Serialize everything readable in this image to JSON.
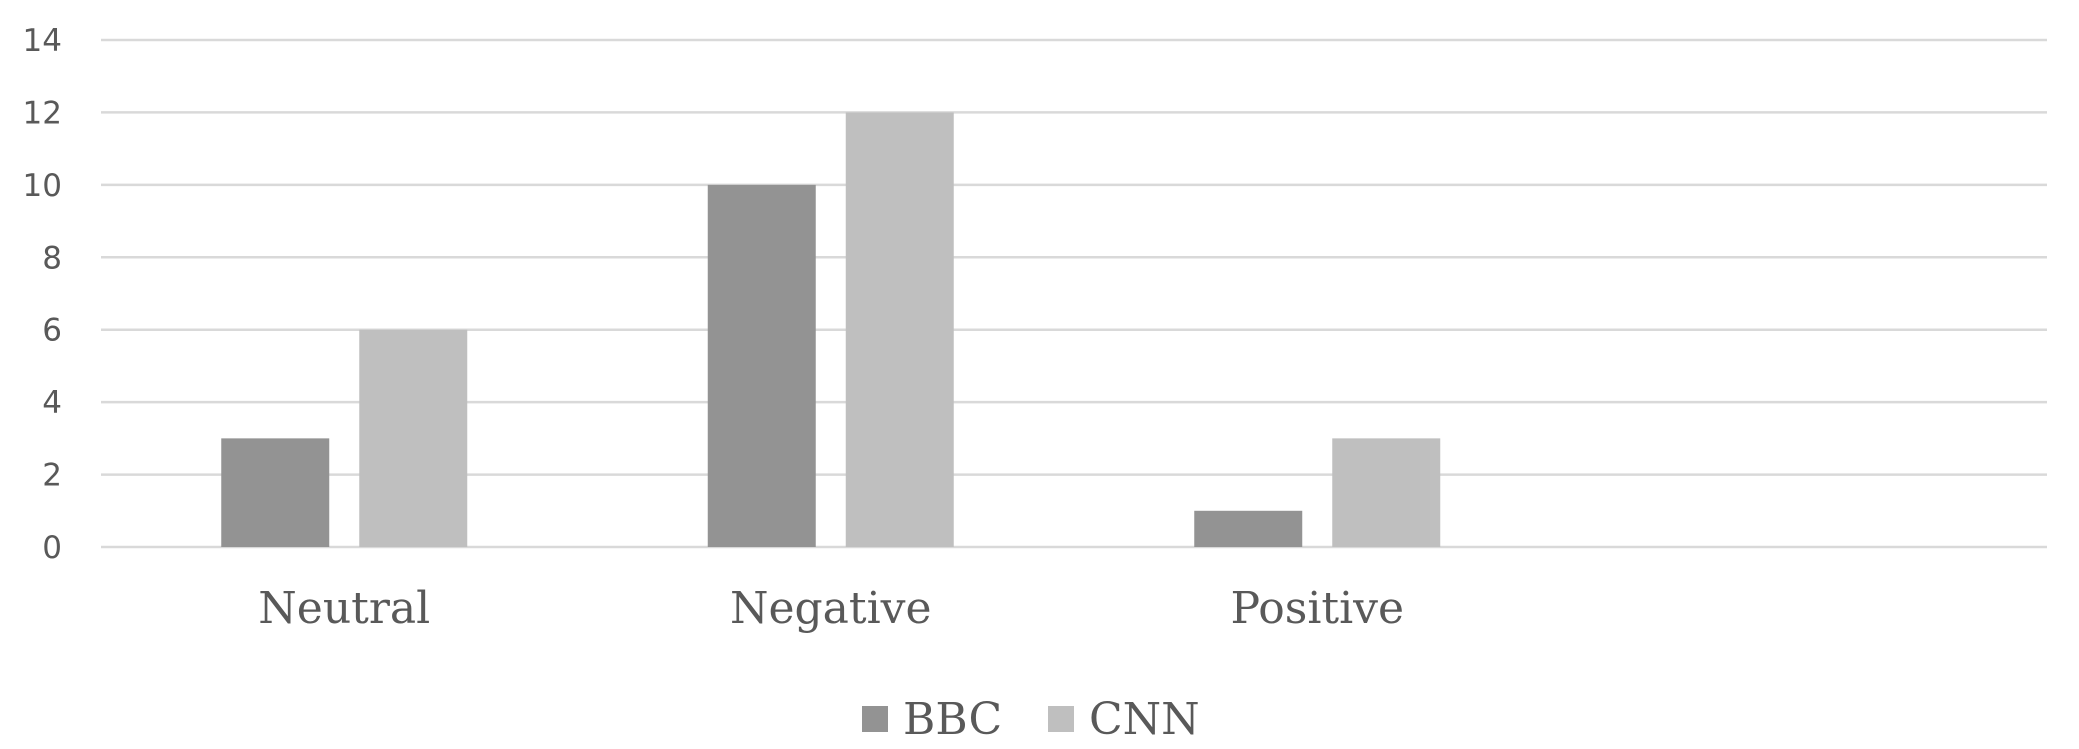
{
  "chart_data": {
    "type": "bar",
    "categories": [
      "Neutral",
      "Negative",
      "Positive",
      ""
    ],
    "series": [
      {
        "name": "BBC",
        "values": [
          3,
          10,
          1,
          null
        ],
        "color": "#939393"
      },
      {
        "name": "CNN",
        "values": [
          6,
          12,
          3,
          null
        ],
        "color": "#bfbfbf"
      }
    ],
    "title": "",
    "xlabel": "",
    "ylabel": "",
    "ylim": [
      0,
      14
    ],
    "yticks": [
      "0",
      "2",
      "4",
      "6",
      "8",
      "10",
      "12",
      "14"
    ],
    "grid": true,
    "legend_position": "bottom"
  }
}
